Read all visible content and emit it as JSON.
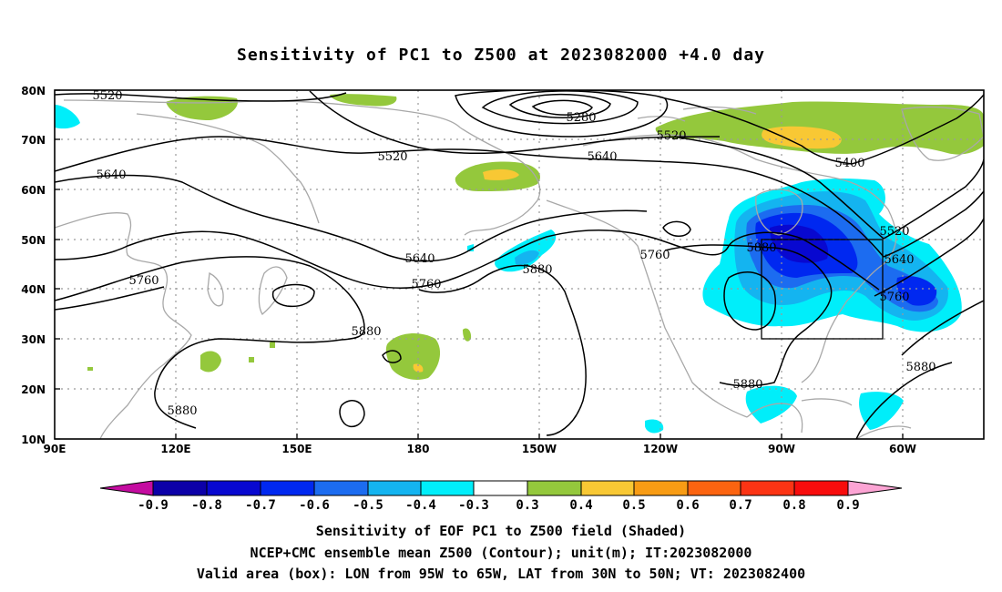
{
  "title": "Sensitivity of PC1 to Z500 at 2023082000 +4.0 day",
  "colors": {
    "neg09": "#0c00a8",
    "neg08": "#0808d0",
    "neg07": "#0028f0",
    "neg06": "#1c6cf0",
    "neg05": "#14b4f0",
    "neg04": "#00eefa",
    "neutral": "#ffffff",
    "pos03": "#94c83c",
    "pos04": "#f8c834",
    "pos05": "#f89c14",
    "pos06": "#fc6410",
    "pos07": "#fc3414",
    "pos08": "#f80c0c",
    "tri_low": "#c40ca0",
    "tri_high": "#fca4d4",
    "coast": "#a8a8a8",
    "grid": "#9a9a9a"
  },
  "map": {
    "lat_labels": [
      "80N",
      "70N",
      "60N",
      "50N",
      "40N",
      "30N",
      "20N",
      "10N"
    ],
    "lon_labels": [
      "90E",
      "120E",
      "150E",
      "180",
      "150W",
      "120W",
      "90W",
      "60W"
    ],
    "contour_labels": [
      "5520",
      "5280",
      "5520",
      "5520",
      "5640",
      "5640",
      "5400",
      "5520",
      "5880",
      "5640",
      "5640",
      "5760",
      "5760",
      "5760",
      "5880",
      "5760",
      "5880",
      "5880",
      "5880",
      "5880"
    ],
    "box": {
      "lon_from": "95W",
      "lon_to": "65W",
      "lat_from": "30N",
      "lat_to": "50N"
    }
  },
  "colorbar": {
    "labels": [
      "-0.9",
      "-0.8",
      "-0.7",
      "-0.6",
      "-0.5",
      "-0.4",
      "-0.3",
      "0.3",
      "0.4",
      "0.5",
      "0.6",
      "0.7",
      "0.8",
      "0.9"
    ]
  },
  "captions": {
    "line1": "Sensitivity of EOF PC1 to Z500 field (Shaded)",
    "line2": "NCEP+CMC ensemble mean Z500 (Contour); unit(m); IT:2023082000",
    "line3": "Valid area (box): LON from 95W to 65W, LAT from 30N to 50N; VT: 2023082400"
  }
}
